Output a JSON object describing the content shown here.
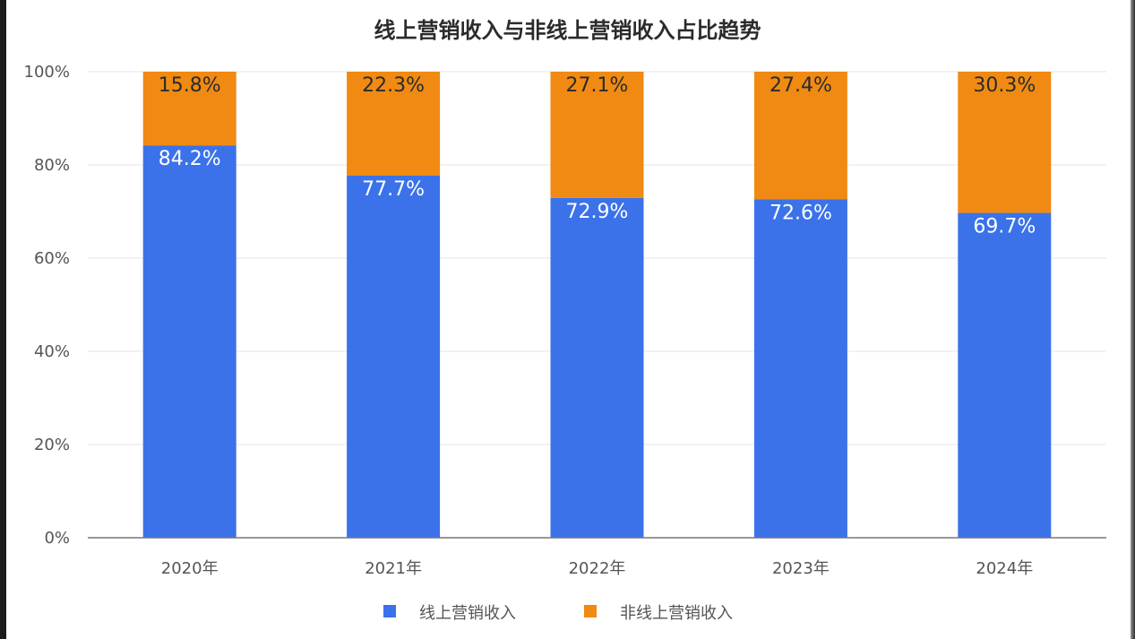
{
  "chart_data": {
    "type": "bar",
    "stacked": true,
    "title": "线上营销收入与非线上营销收入占比趋势",
    "categories": [
      "2020年",
      "2021年",
      "2022年",
      "2023年",
      "2024年"
    ],
    "series": [
      {
        "name": "线上营销收入",
        "color": "#3b72ea",
        "values": [
          84.2,
          77.7,
          72.9,
          72.6,
          69.7
        ],
        "labels": [
          "84.2%",
          "77.7%",
          "72.9%",
          "72.6%",
          "69.7%"
        ]
      },
      {
        "name": "非线上营销收入",
        "color": "#f08a12",
        "values": [
          15.8,
          22.3,
          27.1,
          27.4,
          30.3
        ],
        "labels": [
          "15.8%",
          "22.3%",
          "27.1%",
          "27.4%",
          "30.3%"
        ]
      }
    ],
    "ylim": [
      0,
      100
    ],
    "yticks": [
      "0%",
      "20%",
      "40%",
      "60%",
      "80%",
      "100%"
    ],
    "grid": true,
    "legend_position": "bottom"
  }
}
